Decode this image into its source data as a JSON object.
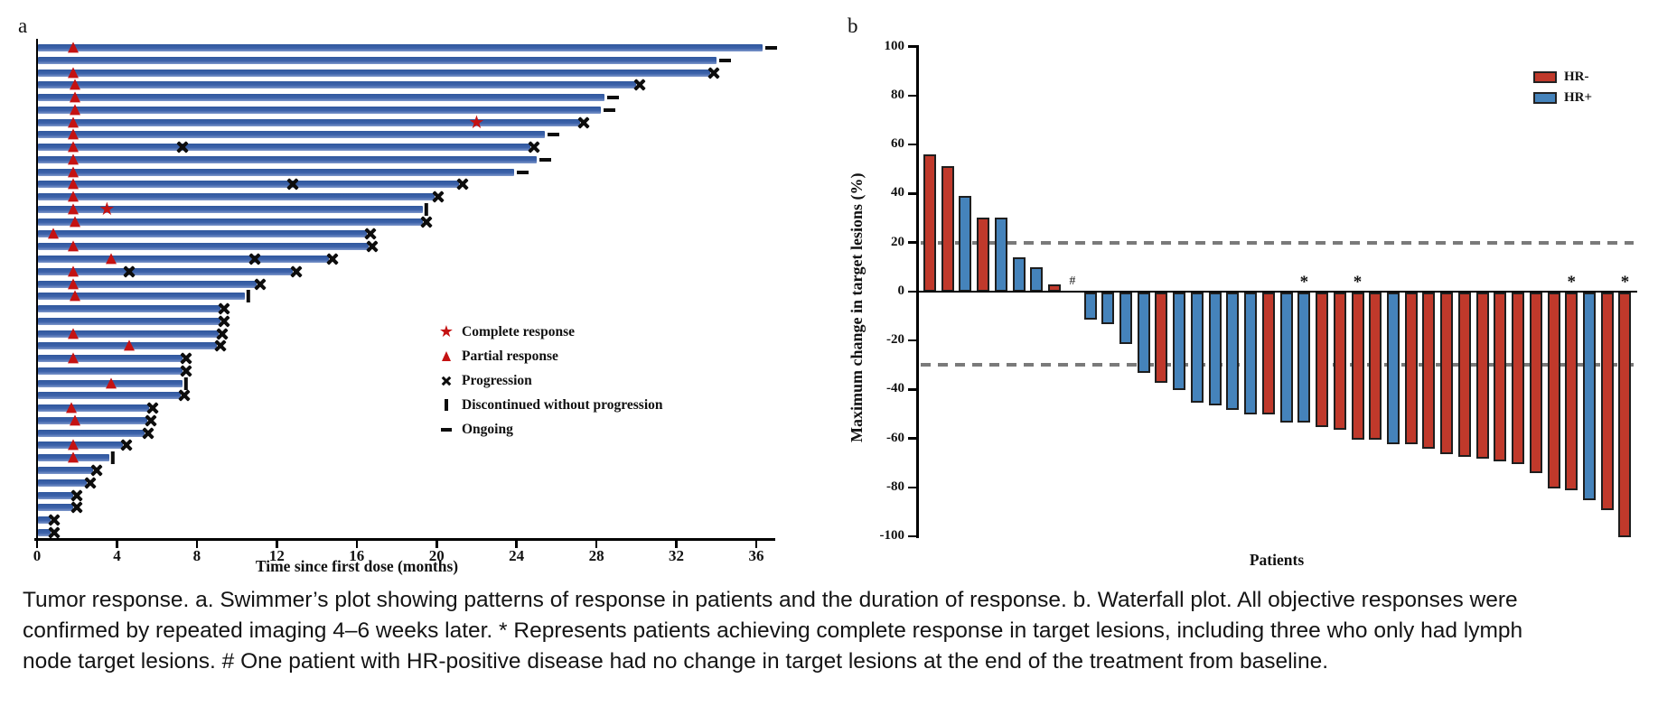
{
  "caption": {
    "lines": [
      "Tumor response. a. Swimmer’s plot showing patterns of response in patients and the duration of response. b. Waterfall plot. All objective responses were",
      "confirmed by repeated imaging 4–6 weeks later. * Represents patients achieving complete response in target lesions, including three who only had lymph",
      "node target lesions. # One patient with HR-positive disease had no change in target lesions at the end of the treatment from baseline."
    ]
  },
  "chart_data": [
    {
      "type": "bar",
      "subtype": "swimmer-timeline",
      "panel_label": "a",
      "xlabel": "Time since first dose (months)",
      "x_ticks": [
        0,
        4,
        8,
        12,
        16,
        20,
        24,
        28,
        32,
        36
      ],
      "xlim": [
        0,
        37
      ],
      "n_patients": 40,
      "bar_color": "#3c62aa",
      "marker_color_response": "#c41212",
      "marker_color_event": "#0d0d0d",
      "legend": [
        {
          "marker": "star",
          "label": "Complete response"
        },
        {
          "marker": "triangle",
          "label": "Partial response"
        },
        {
          "marker": "x",
          "label": "Progression"
        },
        {
          "marker": "bar",
          "label": "Discontinued without progression"
        },
        {
          "marker": "dash",
          "label": "Ongoing"
        }
      ],
      "patients": [
        {
          "months": 36.3,
          "pr": 1.8,
          "end": "ongoing"
        },
        {
          "months": 34.0,
          "end": "ongoing"
        },
        {
          "months": 33.7,
          "pr": 1.8,
          "end": "progression"
        },
        {
          "months": 30.0,
          "pr": 1.9,
          "end": "progression"
        },
        {
          "months": 28.4,
          "pr": 1.9,
          "end": "ongoing"
        },
        {
          "months": 28.2,
          "pr": 1.9,
          "end": "ongoing"
        },
        {
          "months": 27.2,
          "pr": 1.8,
          "cr": 22.0,
          "end": "progression"
        },
        {
          "months": 25.4,
          "pr": 1.8,
          "end": "ongoing"
        },
        {
          "months": 24.7,
          "pr": 1.8,
          "mid_x": 7.3,
          "end": "progression"
        },
        {
          "months": 25.0,
          "pr": 1.8,
          "end": "ongoing"
        },
        {
          "months": 23.9,
          "pr": 1.8,
          "end": "ongoing"
        },
        {
          "months": 21.1,
          "pr": 1.8,
          "mid_x": 12.8,
          "end": "progression"
        },
        {
          "months": 19.9,
          "pr": 1.8,
          "end": "progression"
        },
        {
          "months": 19.3,
          "pr": 1.8,
          "cr": 3.5,
          "end": "discontinued"
        },
        {
          "months": 19.3,
          "pr": 1.9,
          "end": "progression"
        },
        {
          "months": 16.5,
          "pr": 0.8,
          "end": "progression"
        },
        {
          "months": 16.6,
          "pr": 1.8,
          "end": "progression"
        },
        {
          "months": 14.6,
          "pr": 3.7,
          "mid_x": 10.9,
          "end": "progression"
        },
        {
          "months": 12.8,
          "pr": 1.8,
          "mid_x": 4.6,
          "end": "progression"
        },
        {
          "months": 11.0,
          "pr": 1.8,
          "end": "progression"
        },
        {
          "months": 10.4,
          "pr": 1.9,
          "end": "discontinued"
        },
        {
          "months": 9.2,
          "end": "progression"
        },
        {
          "months": 9.2,
          "end": "progression"
        },
        {
          "months": 9.1,
          "pr": 1.8,
          "end": "progression"
        },
        {
          "months": 9.0,
          "pr": 4.6,
          "end": "progression"
        },
        {
          "months": 7.3,
          "pr": 1.8,
          "end": "progression"
        },
        {
          "months": 7.3,
          "end": "progression"
        },
        {
          "months": 7.3,
          "pr": 3.7,
          "end": "discontinued"
        },
        {
          "months": 7.2,
          "end": "progression"
        },
        {
          "months": 5.6,
          "pr": 1.7,
          "end": "progression"
        },
        {
          "months": 5.5,
          "pr": 1.9,
          "end": "progression"
        },
        {
          "months": 5.4,
          "end": "progression"
        },
        {
          "months": 4.3,
          "pr": 1.8,
          "end": "progression"
        },
        {
          "months": 3.6,
          "pr": 1.8,
          "end": "discontinued"
        },
        {
          "months": 2.8,
          "end": "progression"
        },
        {
          "months": 2.5,
          "end": "progression"
        },
        {
          "months": 1.8,
          "end": "progression"
        },
        {
          "months": 1.8,
          "end": "progression"
        },
        {
          "months": 0.7,
          "end": "progression"
        },
        {
          "months": 0.7,
          "end": "progression"
        }
      ]
    },
    {
      "type": "bar",
      "subtype": "waterfall",
      "panel_label": "b",
      "xlabel": "Patients",
      "ylabel": "Maximum change in target lesions (%)",
      "ylim": [
        -100,
        100
      ],
      "y_ticks": [
        100,
        80,
        60,
        40,
        20,
        0,
        -20,
        -40,
        -60,
        -80,
        -100
      ],
      "reference_lines": [
        20,
        -30
      ],
      "legend": [
        {
          "label": "HR-",
          "color": "#c0392b"
        },
        {
          "label": "HR+",
          "color": "#4583bb"
        }
      ],
      "bars": [
        {
          "value": 56,
          "group": "HR-"
        },
        {
          "value": 51,
          "group": "HR-"
        },
        {
          "value": 39,
          "group": "HR+"
        },
        {
          "value": 30,
          "group": "HR-"
        },
        {
          "value": 30,
          "group": "HR+"
        },
        {
          "value": 14,
          "group": "HR+"
        },
        {
          "value": 10,
          "group": "HR+"
        },
        {
          "value": 3,
          "group": "HR-"
        },
        {
          "value": 0,
          "group": "HR+",
          "annotation": "#"
        },
        {
          "value": -11,
          "group": "HR+"
        },
        {
          "value": -13,
          "group": "HR+"
        },
        {
          "value": -21,
          "group": "HR+"
        },
        {
          "value": -33,
          "group": "HR+"
        },
        {
          "value": -37,
          "group": "HR-"
        },
        {
          "value": -40,
          "group": "HR+"
        },
        {
          "value": -45,
          "group": "HR+"
        },
        {
          "value": -46,
          "group": "HR+"
        },
        {
          "value": -48,
          "group": "HR+"
        },
        {
          "value": -50,
          "group": "HR+"
        },
        {
          "value": -50,
          "group": "HR-"
        },
        {
          "value": -53,
          "group": "HR+"
        },
        {
          "value": -53,
          "group": "HR+",
          "annotation": "*"
        },
        {
          "value": -55,
          "group": "HR-"
        },
        {
          "value": -56,
          "group": "HR-"
        },
        {
          "value": -60,
          "group": "HR-",
          "annotation": "*"
        },
        {
          "value": -60,
          "group": "HR-"
        },
        {
          "value": -62,
          "group": "HR+"
        },
        {
          "value": -62,
          "group": "HR-"
        },
        {
          "value": -64,
          "group": "HR-"
        },
        {
          "value": -66,
          "group": "HR-"
        },
        {
          "value": -67,
          "group": "HR-"
        },
        {
          "value": -68,
          "group": "HR-"
        },
        {
          "value": -69,
          "group": "HR-"
        },
        {
          "value": -70,
          "group": "HR-"
        },
        {
          "value": -74,
          "group": "HR-"
        },
        {
          "value": -80,
          "group": "HR-"
        },
        {
          "value": -81,
          "group": "HR-",
          "annotation": "*"
        },
        {
          "value": -85,
          "group": "HR+"
        },
        {
          "value": -89,
          "group": "HR-"
        },
        {
          "value": -100,
          "group": "HR-",
          "annotation": "*"
        }
      ]
    }
  ]
}
